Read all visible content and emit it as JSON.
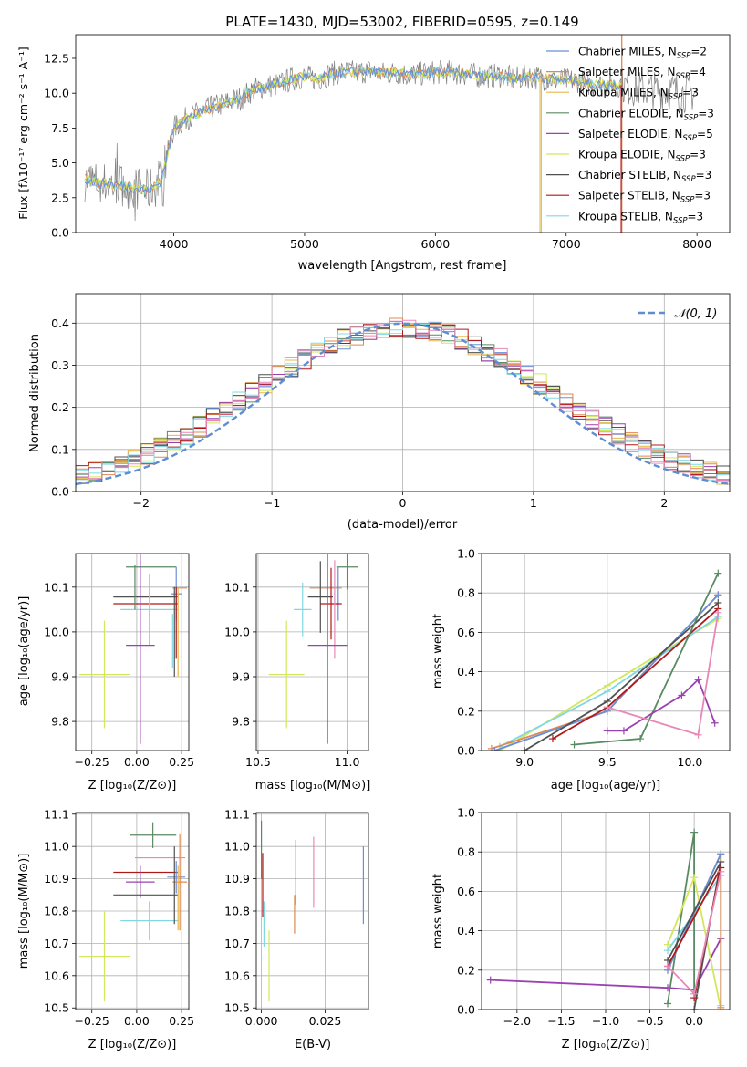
{
  "colors": {
    "chabrier_miles": "#6a8fd8",
    "salpeter_miles": "#e08850",
    "kroupa_miles": "#e8b84a",
    "chabrier_elodie": "#5a8a62",
    "salpeter_elodie": "#9a40b0",
    "kroupa_elodie": "#d4e65a",
    "chabrier_stelib": "#505050",
    "salpeter_stelib": "#b01818",
    "kroupa_stelib": "#80d8e4",
    "pink": "#e888b8",
    "spectrum": "#808080"
  },
  "chart_data": [
    {
      "type": "line",
      "title": "PLATE=1430, MJD=53002, FIBERID=0595, z=0.149",
      "xlabel": "wavelength [Angstrom, rest frame]",
      "ylabel": "Flux [fλ10⁻¹⁷ erg cm⁻² s⁻¹ A⁻¹]",
      "xlim": [
        3250,
        8250
      ],
      "ylim": [
        0,
        14.2
      ],
      "xticks": [
        4000,
        5000,
        6000,
        7000,
        8000
      ],
      "yticks": [
        "0.0",
        "2.5",
        "5.0",
        "7.5",
        "10.0",
        "12.5"
      ],
      "grid": false,
      "legend_position": "top-right",
      "legend": [
        {
          "name": "Chabrier MILES, N",
          "sub": "SSP",
          "tail": "=2",
          "color": "chabrier_miles"
        },
        {
          "name": "Salpeter MILES, N",
          "sub": "SSP",
          "tail": "=4",
          "color": "salpeter_miles"
        },
        {
          "name": "Kroupa MILES, N",
          "sub": "SSP",
          "tail": "=3",
          "color": "kroupa_miles"
        },
        {
          "name": "Chabrier ELODIE, N",
          "sub": "SSP",
          "tail": "=3",
          "color": "chabrier_elodie"
        },
        {
          "name": "Salpeter ELODIE, N",
          "sub": "SSP",
          "tail": "=5",
          "color": "salpeter_elodie"
        },
        {
          "name": "Kroupa ELODIE, N",
          "sub": "SSP",
          "tail": "=3",
          "color": "kroupa_elodie"
        },
        {
          "name": "Chabrier STELIB, N",
          "sub": "SSP",
          "tail": "=3",
          "color": "chabrier_stelib"
        },
        {
          "name": "Salpeter STELIB, N",
          "sub": "SSP",
          "tail": "=3",
          "color": "salpeter_stelib"
        },
        {
          "name": "Kroupa STELIB, N",
          "sub": "SSP",
          "tail": "=3",
          "color": "kroupa_stelib"
        }
      ],
      "continuum": [
        [
          3320,
          3.8
        ],
        [
          3400,
          3.6
        ],
        [
          3500,
          3.5
        ],
        [
          3600,
          3.4
        ],
        [
          3700,
          3.2
        ],
        [
          3800,
          3.0
        ],
        [
          3900,
          3.6
        ],
        [
          4000,
          7.5
        ],
        [
          4100,
          8.2
        ],
        [
          4200,
          8.6
        ],
        [
          4300,
          9.0
        ],
        [
          4400,
          9.3
        ],
        [
          4500,
          9.6
        ],
        [
          4600,
          10.2
        ],
        [
          4700,
          10.5
        ],
        [
          4800,
          10.6
        ],
        [
          4900,
          11.0
        ],
        [
          5000,
          11.2
        ],
        [
          5100,
          11.0
        ],
        [
          5200,
          11.4
        ],
        [
          5300,
          11.5
        ],
        [
          5400,
          11.5
        ],
        [
          5500,
          11.6
        ],
        [
          5600,
          11.4
        ],
        [
          5700,
          11.5
        ],
        [
          5800,
          11.3
        ],
        [
          5900,
          11.4
        ],
        [
          6000,
          11.5
        ],
        [
          6100,
          11.5
        ],
        [
          6200,
          11.4
        ],
        [
          6300,
          11.3
        ],
        [
          6400,
          11.2
        ],
        [
          6500,
          11.3
        ],
        [
          6600,
          11.0
        ],
        [
          6700,
          11.2
        ],
        [
          6800,
          11.1
        ],
        [
          6900,
          11.0
        ],
        [
          7000,
          10.9
        ],
        [
          7100,
          10.9
        ],
        [
          7200,
          10.6
        ],
        [
          7300,
          10.6
        ],
        [
          7400,
          10.6
        ],
        [
          7500,
          10.4
        ],
        [
          7600,
          10.3
        ],
        [
          7700,
          10.2
        ],
        [
          7800,
          10.2
        ],
        [
          7900,
          10.0
        ],
        [
          8000,
          10.0
        ]
      ],
      "model_start": 3320,
      "model_end": 7420
    },
    {
      "type": "line",
      "xlabel": "(data-model)/error",
      "ylabel": "Normed distribution",
      "xlim": [
        -2.5,
        2.5
      ],
      "ylim": [
        0,
        0.47
      ],
      "xticks": [
        "−2",
        "−1",
        "0",
        "1",
        "2"
      ],
      "yticks": [
        "0.0",
        "0.1",
        "0.2",
        "0.3",
        "0.4"
      ],
      "grid": true,
      "legend_position": "top-right",
      "legend": [
        {
          "name": "𝒩(0, 1)",
          "color": "#5f8dd3",
          "style": "dashed"
        }
      ],
      "gaussian": {
        "mu": 0,
        "sigma": 1
      }
    },
    {
      "type": "scatter",
      "xlabel": "Z [log₁₀(Z/Z⊙)]",
      "ylabel": "age  [log₁₀(age/yr)]",
      "xlim": [
        -0.34,
        0.29
      ],
      "ylim": [
        9.735,
        10.175
      ],
      "xticks": [
        "−0.25",
        "0.00",
        "0.25"
      ],
      "yticks": [
        "9.8",
        "9.9",
        "10.0",
        "10.1"
      ],
      "grid": true,
      "points": [
        {
          "c": "chabrier_elodie",
          "x": 0.08,
          "xe": 0.14,
          "y": 10.145,
          "ye": 0.0
        },
        {
          "c": "salpeter_miles",
          "x": 0.24,
          "xe": 0.04,
          "y": 10.098,
          "ye": 0.0
        },
        {
          "c": "chabrier_miles",
          "x": 0.22,
          "xe": 0.03,
          "y": 10.085,
          "ye": 0.06
        },
        {
          "c": "chabrier_stelib",
          "x": 0.05,
          "xe": 0.18,
          "y": 10.078,
          "ye": 0.0
        },
        {
          "c": "salpeter_stelib",
          "x": 0.05,
          "xe": 0.18,
          "y": 10.063,
          "ye": 0.0
        },
        {
          "c": "pink",
          "x": 0.23,
          "xe": 0.0,
          "y": 10.05,
          "ye": 0.0
        },
        {
          "c": "kroupa_stelib",
          "x": 0.07,
          "xe": 0.16,
          "y": 10.05,
          "ye": 0.08
        },
        {
          "c": "salpeter_elodie",
          "x": 0.02,
          "xe": 0.08,
          "y": 9.97,
          "ye": 0.22
        },
        {
          "c": "kroupa_elodie",
          "x": -0.18,
          "xe": 0.14,
          "y": 9.905,
          "ye": 0.12
        },
        {
          "c": "chabrier_elodie",
          "x": -0.01,
          "xe": 0.0,
          "y": 10.1,
          "ye": 0.05
        },
        {
          "c": "chabrier_stelib",
          "x": 0.21,
          "xe": 0.0,
          "y": 10.0,
          "ye": 0.1
        },
        {
          "c": "salpeter_stelib",
          "x": 0.22,
          "xe": 0.0,
          "y": 10.02,
          "ye": 0.08
        },
        {
          "c": "kroupa_miles",
          "x": 0.23,
          "xe": 0.0,
          "y": 10.0,
          "ye": 0.1
        },
        {
          "c": "kroupa_stelib",
          "x": 0.2,
          "xe": 0.0,
          "y": 9.98,
          "ye": 0.06
        }
      ]
    },
    {
      "type": "scatter",
      "xlabel": "mass [log₁₀(M/M⊙)]",
      "xlim": [
        10.49,
        11.12
      ],
      "ylim": [
        9.735,
        10.175
      ],
      "xticks": [
        "10.5",
        "11.0"
      ],
      "yticks": [
        "9.8",
        "9.9",
        "10.0",
        "10.1"
      ],
      "grid": true,
      "points": [
        {
          "c": "chabrier_elodie",
          "x": 11.0,
          "xe": 0.06,
          "y": 10.145,
          "ye": 0.05
        },
        {
          "c": "salpeter_miles",
          "x": 10.88,
          "xe": 0.09,
          "y": 10.098,
          "ye": 0.0
        },
        {
          "c": "chabrier_miles",
          "x": 10.95,
          "xe": 0.0,
          "y": 10.085,
          "ye": 0.06
        },
        {
          "c": "chabrier_stelib",
          "x": 10.85,
          "xe": 0.07,
          "y": 10.078,
          "ye": 0.08
        },
        {
          "c": "salpeter_stelib",
          "x": 10.91,
          "xe": 0.06,
          "y": 10.063,
          "ye": 0.08
        },
        {
          "c": "pink",
          "x": 10.93,
          "xe": 0.0,
          "y": 10.05,
          "ye": 0.11
        },
        {
          "c": "kroupa_stelib",
          "x": 10.75,
          "xe": 0.05,
          "y": 10.05,
          "ye": 0.06
        },
        {
          "c": "salpeter_elodie",
          "x": 10.89,
          "xe": 0.11,
          "y": 9.97,
          "ye": 0.22
        },
        {
          "c": "kroupa_elodie",
          "x": 10.66,
          "xe": 0.1,
          "y": 9.905,
          "ye": 0.12
        }
      ]
    },
    {
      "type": "line",
      "xlabel": "age  [log₁₀(age/yr)]",
      "ylabel": "mass weight",
      "xlim": [
        8.74,
        10.24
      ],
      "ylim": [
        0,
        1.0
      ],
      "xticks": [
        "9.0",
        "9.5",
        "10.0"
      ],
      "yticks": [
        "0.0",
        "0.2",
        "0.4",
        "0.6",
        "0.8",
        "1.0"
      ],
      "grid": true,
      "series": [
        {
          "c": "kroupa_elodie",
          "pts": [
            [
              8.85,
              0.0
            ],
            [
              9.5,
              0.33
            ],
            [
              10.17,
              0.67
            ]
          ]
        },
        {
          "c": "kroupa_stelib",
          "pts": [
            [
              8.85,
              0.02
            ],
            [
              9.5,
              0.3
            ],
            [
              10.17,
              0.68
            ]
          ]
        },
        {
          "c": "salpeter_miles",
          "pts": [
            [
              8.8,
              0.01
            ],
            [
              9.5,
              0.2
            ],
            [
              10.17,
              0.79
            ]
          ]
        },
        {
          "c": "chabrier_miles",
          "pts": [
            [
              8.82,
              0.0
            ],
            [
              9.5,
              0.2
            ],
            [
              10.17,
              0.79
            ]
          ]
        },
        {
          "c": "chabrier_stelib",
          "pts": [
            [
              9.0,
              0.0
            ],
            [
              9.5,
              0.25
            ],
            [
              10.17,
              0.75
            ]
          ]
        },
        {
          "c": "salpeter_stelib",
          "pts": [
            [
              9.17,
              0.06
            ],
            [
              9.5,
              0.22
            ],
            [
              10.17,
              0.72
            ]
          ]
        },
        {
          "c": "chabrier_elodie",
          "pts": [
            [
              9.3,
              0.03
            ],
            [
              9.7,
              0.06
            ],
            [
              10.17,
              0.9
            ]
          ]
        },
        {
          "c": "salpeter_elodie",
          "pts": [
            [
              9.5,
              0.1
            ],
            [
              9.6,
              0.1
            ],
            [
              9.95,
              0.28
            ],
            [
              10.05,
              0.36
            ],
            [
              10.15,
              0.14
            ]
          ]
        },
        {
          "c": "pink",
          "pts": [
            [
              9.5,
              0.22
            ],
            [
              10.05,
              0.08
            ],
            [
              10.17,
              0.7
            ]
          ]
        }
      ]
    },
    {
      "type": "scatter",
      "xlabel": "Z [log₁₀(Z/Z⊙)]",
      "ylabel": "mass [log₁₀(M/M⊙)]",
      "xlim": [
        -0.34,
        0.29
      ],
      "ylim": [
        10.495,
        11.105
      ],
      "xticks": [
        "−0.25",
        "0.00",
        "0.25"
      ],
      "yticks": [
        "10.5",
        "10.6",
        "10.7",
        "10.8",
        "10.9",
        "11.0",
        "11.1"
      ],
      "grid": true,
      "points": [
        {
          "c": "chabrier_elodie",
          "x": 0.09,
          "xe": 0.13,
          "y": 11.035,
          "ye": 0.04
        },
        {
          "c": "pink",
          "x": 0.13,
          "xe": 0.14,
          "y": 10.965,
          "ye": 0.0
        },
        {
          "c": "salpeter_stelib",
          "x": 0.05,
          "xe": 0.18,
          "y": 10.92,
          "ye": 0.0
        },
        {
          "c": "chabrier_miles",
          "x": 0.22,
          "xe": 0.05,
          "y": 10.905,
          "ye": 0.05
        },
        {
          "c": "salpeter_elodie",
          "x": 0.02,
          "xe": 0.08,
          "y": 10.89,
          "ye": 0.05
        },
        {
          "c": "salpeter_miles",
          "x": 0.24,
          "xe": 0.04,
          "y": 10.89,
          "ye": 0.15
        },
        {
          "c": "chabrier_stelib",
          "x": 0.05,
          "xe": 0.18,
          "y": 10.85,
          "ye": 0.0
        },
        {
          "c": "kroupa_stelib",
          "x": 0.07,
          "xe": 0.16,
          "y": 10.77,
          "ye": 0.06
        },
        {
          "c": "kroupa_elodie",
          "x": -0.18,
          "xe": 0.14,
          "y": 10.66,
          "ye": 0.14
        },
        {
          "c": "chabrier_stelib",
          "x": 0.21,
          "xe": 0.0,
          "y": 10.88,
          "ye": 0.12
        },
        {
          "c": "kroupa_miles",
          "x": 0.23,
          "xe": 0.0,
          "y": 10.84,
          "ye": 0.1
        }
      ]
    },
    {
      "type": "scatter",
      "xlabel": "E(B-V)",
      "xlim": [
        -0.002,
        0.042
      ],
      "ylim": [
        10.495,
        11.105
      ],
      "xticks": [
        "0.000",
        "0.025"
      ],
      "yticks": [
        "10.5",
        "10.6",
        "10.7",
        "10.8",
        "10.9",
        "11.0",
        "11.1"
      ],
      "grid": true,
      "points": [
        {
          "c": "chabrier_elodie",
          "x": 0.0,
          "xe": 0.0,
          "y": 10.99,
          "ye": 0.09
        },
        {
          "c": "salpeter_stelib",
          "x": 0.0005,
          "xe": 0.0,
          "y": 10.88,
          "ye": 0.1
        },
        {
          "c": "kroupa_stelib",
          "x": 0.001,
          "xe": 0.0,
          "y": 10.76,
          "ye": 0.07
        },
        {
          "c": "kroupa_elodie",
          "x": 0.003,
          "xe": 0.0,
          "y": 10.63,
          "ye": 0.11
        },
        {
          "c": "salpeter_elodie",
          "x": 0.0135,
          "xe": 0.0,
          "y": 10.92,
          "ye": 0.1
        },
        {
          "c": "salpeter_miles",
          "x": 0.013,
          "xe": 0.0,
          "y": 10.79,
          "ye": 0.06
        },
        {
          "c": "pink",
          "x": 0.0205,
          "xe": 0.0,
          "y": 10.92,
          "ye": 0.11
        },
        {
          "c": "chabrier_miles",
          "x": 0.04,
          "xe": 0.0,
          "y": 10.88,
          "ye": 0.12
        }
      ]
    },
    {
      "type": "line",
      "xlabel": "Z [log₁₀(Z/Z⊙)]",
      "ylabel": "mass weight",
      "xlim": [
        -2.4,
        0.4
      ],
      "ylim": [
        0,
        1.0
      ],
      "xticks": [
        "−2.0",
        "−1.5",
        "−1.0",
        "−0.5",
        "0.0"
      ],
      "yticks": [
        "0.0",
        "0.2",
        "0.4",
        "0.6",
        "0.8",
        "1.0"
      ],
      "grid": true,
      "series": [
        {
          "c": "salpeter_elodie",
          "pts": [
            [
              -2.3,
              0.15
            ],
            [
              -0.3,
              0.11
            ],
            [
              0.0,
              0.1
            ],
            [
              0.3,
              0.36
            ]
          ]
        },
        {
          "c": "chabrier_elodie",
          "pts": [
            [
              -0.3,
              0.03
            ],
            [
              0.0,
              0.9
            ],
            [
              0.0,
              0.06
            ]
          ]
        },
        {
          "c": "kroupa_elodie",
          "pts": [
            [
              -0.3,
              0.33
            ],
            [
              0.0,
              0.67
            ],
            [
              0.3,
              0.0
            ]
          ]
        },
        {
          "c": "kroupa_stelib",
          "pts": [
            [
              -0.3,
              0.3
            ],
            [
              0.3,
              0.68
            ],
            [
              0.3,
              0.02
            ]
          ]
        },
        {
          "c": "salpeter_miles",
          "pts": [
            [
              -0.3,
              0.2
            ],
            [
              0.3,
              0.79
            ],
            [
              0.3,
              0.01
            ]
          ]
        },
        {
          "c": "chabrier_miles",
          "pts": [
            [
              -0.3,
              0.2
            ],
            [
              0.3,
              0.79
            ]
          ]
        },
        {
          "c": "chabrier_stelib",
          "pts": [
            [
              -0.3,
              0.25
            ],
            [
              0.3,
              0.75
            ],
            [
              0.0,
              0.0
            ]
          ]
        },
        {
          "c": "salpeter_stelib",
          "pts": [
            [
              -0.3,
              0.22
            ],
            [
              0.3,
              0.72
            ],
            [
              0.0,
              0.06
            ]
          ]
        },
        {
          "c": "pink",
          "pts": [
            [
              -0.3,
              0.22
            ],
            [
              0.0,
              0.08
            ],
            [
              0.3,
              0.7
            ]
          ]
        }
      ]
    }
  ]
}
